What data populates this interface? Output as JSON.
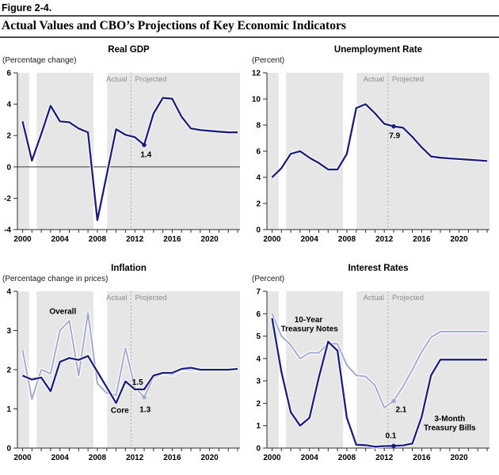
{
  "figure": {
    "label": "Figure 2-4.",
    "title": "Actual Values and CBO’s Projections of Key Economic Indicators"
  },
  "divider_labels": {
    "actual": "Actual",
    "projected": "Projected"
  },
  "colors": {
    "dark_line": "#1c1c7e",
    "light_line": "#a3abce",
    "plot_bg": "#e6e6e6",
    "recession_band": "#ffffff",
    "divider": "#9a9a9a",
    "divider_text": "#8e8e8e",
    "axis": "#2e2e2e",
    "zero_line": "#4d4d4d",
    "text": "#000000"
  },
  "x_axis": {
    "years": [
      2000,
      2001,
      2002,
      2003,
      2004,
      2005,
      2006,
      2007,
      2008,
      2009,
      2010,
      2011,
      2012,
      2013,
      2014,
      2015,
      2016,
      2017,
      2018,
      2019,
      2020,
      2021,
      2022,
      2023
    ],
    "tick_labels": [
      2000,
      2004,
      2008,
      2012,
      2016,
      2020
    ],
    "domain": [
      1999.45,
      2023.25
    ]
  },
  "recession_bands": [
    [
      2000.7,
      2001.5
    ],
    [
      2007.6,
      2009.05
    ]
  ],
  "chart_data": [
    {
      "id": "real-gdp",
      "type": "line",
      "title": "Real GDP",
      "unit_label": "(Percentage change)",
      "ylim": [
        -4,
        6
      ],
      "yticks": [
        -4,
        -2,
        0,
        2,
        4,
        6
      ],
      "zero_line": true,
      "divider_year": 2011.6,
      "series": [
        {
          "name": "Real GDP",
          "palette": "dark",
          "values": [
            2.9,
            0.4,
            2.1,
            3.9,
            2.9,
            2.85,
            2.45,
            2.2,
            -3.4,
            -0.5,
            2.4,
            2.05,
            1.9,
            1.4,
            3.4,
            4.4,
            4.35,
            3.2,
            2.45,
            2.35,
            2.3,
            2.25,
            2.2,
            2.2
          ]
        }
      ],
      "annotations": [
        {
          "text": "1.4",
          "x": 2013.2,
          "y": 0.62
        }
      ],
      "markers": [
        {
          "x": 2013,
          "y": 1.4,
          "palette": "dark"
        }
      ]
    },
    {
      "id": "unemployment-rate",
      "type": "line",
      "title": "Unemployment Rate",
      "unit_label": "(Percent)",
      "ylim": [
        0,
        12
      ],
      "yticks": [
        0,
        2,
        4,
        6,
        8,
        10,
        12
      ],
      "zero_line": false,
      "divider_year": 2012.4,
      "series": [
        {
          "name": "Unemployment Rate",
          "palette": "dark",
          "values": [
            4.0,
            4.7,
            5.8,
            6.0,
            5.5,
            5.1,
            4.6,
            4.6,
            5.8,
            9.3,
            9.6,
            8.9,
            8.1,
            7.9,
            7.8,
            7.1,
            6.3,
            5.6,
            5.5,
            5.45,
            5.4,
            5.35,
            5.3,
            5.25
          ]
        }
      ],
      "annotations": [
        {
          "text": "7.9",
          "x": 2013.1,
          "y": 7.0
        }
      ],
      "markers": [
        {
          "x": 2013,
          "y": 7.9,
          "palette": "dark"
        }
      ]
    },
    {
      "id": "inflation",
      "type": "line",
      "title": "Inflation",
      "unit_label": "(Percentage change in prices)",
      "ylim": [
        0,
        4
      ],
      "yticks": [
        0,
        1,
        2,
        3,
        4
      ],
      "zero_line": false,
      "divider_year": 2011.6,
      "series": [
        {
          "name": "Overall",
          "palette": "light",
          "values": [
            2.5,
            1.25,
            2.0,
            1.9,
            3.0,
            3.25,
            1.85,
            3.45,
            1.65,
            1.4,
            1.35,
            2.55,
            1.55,
            1.3,
            1.8,
            1.9,
            1.87,
            2.0,
            2.0,
            2.0,
            2.0,
            2.0,
            2.0,
            2.0
          ]
        },
        {
          "name": "Core",
          "palette": "dark",
          "values": [
            1.85,
            1.75,
            1.8,
            1.45,
            2.2,
            2.3,
            2.25,
            2.35,
            1.95,
            1.55,
            1.15,
            1.7,
            1.5,
            1.5,
            1.85,
            1.92,
            1.92,
            2.02,
            2.05,
            2.0,
            2.0,
            2.0,
            2.0,
            2.02
          ]
        }
      ],
      "series_labels": [
        {
          "text": "Overall",
          "x": 2004.3,
          "y": 3.42
        },
        {
          "text": "Core",
          "x": 2010.4,
          "y": 0.9
        }
      ],
      "annotations": [
        {
          "text": "1.5",
          "x": 2012.3,
          "y": 1.62
        },
        {
          "text": "1.3",
          "x": 2013.1,
          "y": 0.92
        }
      ],
      "markers": [
        {
          "x": 2013,
          "y": 1.3,
          "palette": "light"
        }
      ]
    },
    {
      "id": "interest-rates",
      "type": "line",
      "title": "Interest Rates",
      "unit_label": "(Percent)",
      "ylim": [
        0,
        7
      ],
      "yticks": [
        0,
        1,
        2,
        3,
        4,
        5,
        6,
        7
      ],
      "zero_line": false,
      "divider_year": 2012.4,
      "series": [
        {
          "name": "10-Year Treasury Notes",
          "palette": "light",
          "values": [
            6.0,
            5.0,
            4.6,
            4.0,
            4.25,
            4.25,
            4.7,
            4.65,
            3.7,
            3.25,
            3.2,
            2.8,
            1.8,
            2.1,
            2.75,
            3.5,
            4.3,
            4.95,
            5.2,
            5.2,
            5.2,
            5.2,
            5.2,
            5.2
          ]
        },
        {
          "name": "3-Month Treasury Bills",
          "palette": "dark",
          "values": [
            5.8,
            3.4,
            1.6,
            1.0,
            1.35,
            3.15,
            4.75,
            4.35,
            1.35,
            0.15,
            0.13,
            0.06,
            0.09,
            0.1,
            0.12,
            0.2,
            1.4,
            3.25,
            3.95,
            3.95,
            3.95,
            3.95,
            3.95,
            3.95
          ]
        }
      ],
      "series_labels": [
        {
          "text": "10-Year",
          "x": 2003.9,
          "y": 5.62
        },
        {
          "text": "Treasury Notes",
          "x": 2004.0,
          "y": 5.22
        },
        {
          "text": "3-Month",
          "x": 2019.0,
          "y": 1.2
        },
        {
          "text": "Treasury Bills",
          "x": 2019.0,
          "y": 0.8
        }
      ],
      "annotations": [
        {
          "text": "2.1",
          "x": 2013.8,
          "y": 1.6
        },
        {
          "text": "0.1",
          "x": 2012.7,
          "y": 0.45
        }
      ],
      "markers": [
        {
          "x": 2013,
          "y": 2.1,
          "palette": "light"
        },
        {
          "x": 2013,
          "y": 0.1,
          "palette": "dark"
        }
      ]
    }
  ]
}
